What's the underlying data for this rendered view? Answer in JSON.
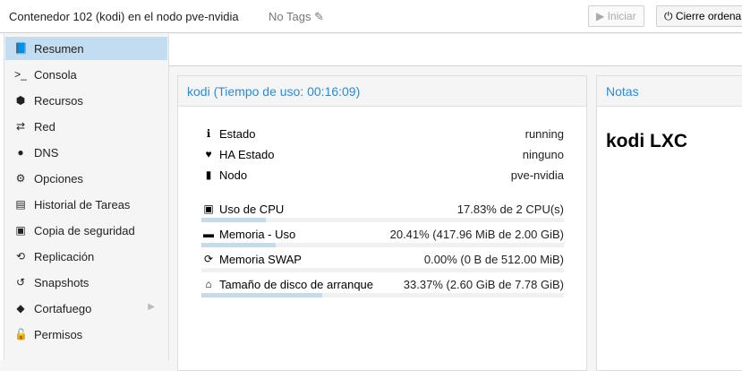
{
  "header": {
    "title": "Contenedor 102 (kodi) en el nodo pve-nvidia",
    "tags": "No Tags",
    "start_label": "Iniciar",
    "shutdown_label": "Cierre ordena"
  },
  "sidebar": {
    "items": [
      {
        "label": "Resumen",
        "icon": "book-icon",
        "selected": true
      },
      {
        "label": "Consola",
        "icon": "terminal-icon"
      },
      {
        "label": "Recursos",
        "icon": "cube-icon"
      },
      {
        "label": "Red",
        "icon": "exchange-icon"
      },
      {
        "label": "DNS",
        "icon": "globe-icon"
      },
      {
        "label": "Opciones",
        "icon": "gear-icon"
      },
      {
        "label": "Historial de Tareas",
        "icon": "list-icon"
      },
      {
        "label": "Copia de seguridad",
        "icon": "floppy-icon"
      },
      {
        "label": "Replicación",
        "icon": "retweet-icon"
      },
      {
        "label": "Snapshots",
        "icon": "history-icon"
      },
      {
        "label": "Cortafuego",
        "icon": "shield-icon"
      },
      {
        "label": "Permisos",
        "icon": "unlock-icon"
      }
    ]
  },
  "summary": {
    "title": "kodi (Tiempo de uso: 00:16:09)",
    "status": [
      {
        "label": "Estado",
        "value": "running"
      },
      {
        "label": "HA Estado",
        "value": "ninguno"
      },
      {
        "label": "Nodo",
        "value": "pve-nvidia"
      }
    ],
    "usage": [
      {
        "label": "Uso de CPU",
        "value": "17.83% de 2 CPU(s)",
        "fraction": 0.1783
      },
      {
        "label": "Memoria - Uso",
        "value": "20.41% (417.96 MiB de 2.00 GiB)",
        "fraction": 0.2041
      },
      {
        "label": "Memoria SWAP",
        "value": "0.00% (0 B de 512.00 MiB)",
        "fraction": 0
      },
      {
        "label": "Tamaño de disco de arranque",
        "value": "33.37% (2.60 GiB de 7.78 GiB)",
        "fraction": 0.3337
      }
    ]
  },
  "notes": {
    "title": "Notas",
    "content": "kodi LXC"
  },
  "colors": {
    "accent": "#2d8ad5",
    "selected": "#c2ddf2",
    "bar": "#bfdcf1"
  }
}
